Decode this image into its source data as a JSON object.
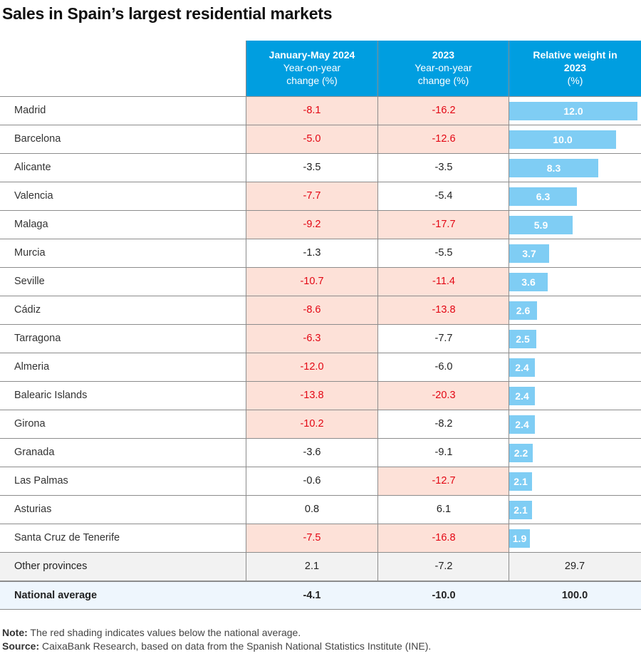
{
  "title": "Sales in Spain’s largest residential markets",
  "columns": [
    {
      "bold": "January-May 2024",
      "l1": "Year-on-year",
      "l2": "change (%)"
    },
    {
      "bold": "2023",
      "l1": "Year-on-year",
      "l2": "change (%)"
    },
    {
      "bold": "Relative weight in",
      "l1": "2023",
      "l2": "(%)"
    }
  ],
  "chart_data": {
    "type": "table",
    "title": "Sales in Spain’s largest residential markets",
    "headers": [
      "January-May 2024 Year-on-year change (%)",
      "2023 Year-on-year change (%)",
      "Relative weight in 2023 (%)"
    ],
    "rows": [
      {
        "name": "Madrid",
        "ytd": "-8.1",
        "y2023": "-16.2",
        "weight": "12.0",
        "w": 12.0,
        "ytd_neg": true,
        "y23_neg": true
      },
      {
        "name": "Barcelona",
        "ytd": "-5.0",
        "y2023": "-12.6",
        "weight": "10.0",
        "w": 10.0,
        "ytd_neg": true,
        "y23_neg": true
      },
      {
        "name": "Alicante",
        "ytd": "-3.5",
        "y2023": "-3.5",
        "weight": "8.3",
        "w": 8.3,
        "ytd_neg": false,
        "y23_neg": false
      },
      {
        "name": "Valencia",
        "ytd": "-7.7",
        "y2023": "-5.4",
        "weight": "6.3",
        "w": 6.3,
        "ytd_neg": true,
        "y23_neg": false
      },
      {
        "name": "Malaga",
        "ytd": "-9.2",
        "y2023": "-17.7",
        "weight": "5.9",
        "w": 5.9,
        "ytd_neg": true,
        "y23_neg": true
      },
      {
        "name": "Murcia",
        "ytd": "-1.3",
        "y2023": "-5.5",
        "weight": "3.7",
        "w": 3.7,
        "ytd_neg": false,
        "y23_neg": false
      },
      {
        "name": "Seville",
        "ytd": "-10.7",
        "y2023": "-11.4",
        "weight": "3.6",
        "w": 3.6,
        "ytd_neg": true,
        "y23_neg": true
      },
      {
        "name": "Cádiz",
        "ytd": "-8.6",
        "y2023": "-13.8",
        "weight": "2.6",
        "w": 2.6,
        "ytd_neg": true,
        "y23_neg": true
      },
      {
        "name": "Tarragona",
        "ytd": "-6.3",
        "y2023": "-7.7",
        "weight": "2.5",
        "w": 2.5,
        "ytd_neg": true,
        "y23_neg": false
      },
      {
        "name": "Almeria",
        "ytd": "-12.0",
        "y2023": "-6.0",
        "weight": "2.4",
        "w": 2.4,
        "ytd_neg": true,
        "y23_neg": false
      },
      {
        "name": "Balearic Islands",
        "ytd": "-13.8",
        "y2023": "-20.3",
        "weight": "2.4",
        "w": 2.4,
        "ytd_neg": true,
        "y23_neg": true
      },
      {
        "name": "Girona",
        "ytd": "-10.2",
        "y2023": "-8.2",
        "weight": "2.4",
        "w": 2.4,
        "ytd_neg": true,
        "y23_neg": false
      },
      {
        "name": "Granada",
        "ytd": "-3.6",
        "y2023": "-9.1",
        "weight": "2.2",
        "w": 2.2,
        "ytd_neg": false,
        "y23_neg": false
      },
      {
        "name": "Las Palmas",
        "ytd": "-0.6",
        "y2023": "-12.7",
        "weight": "2.1",
        "w": 2.1,
        "ytd_neg": false,
        "y23_neg": true
      },
      {
        "name": "Asturias",
        "ytd": "0.8",
        "y2023": "6.1",
        "weight": "2.1",
        "w": 2.1,
        "ytd_neg": false,
        "y23_neg": false
      },
      {
        "name": "Santa Cruz de Tenerife",
        "ytd": "-7.5",
        "y2023": "-16.8",
        "weight": "1.9",
        "w": 1.9,
        "ytd_neg": true,
        "y23_neg": true
      }
    ],
    "other": {
      "name": "Other provinces",
      "ytd": "2.1",
      "y2023": "-7.2",
      "weight": "29.7"
    },
    "national": {
      "name": "National average",
      "ytd": "-4.1",
      "y2023": "-10.0",
      "weight": "100.0"
    },
    "bar_max": 12.0
  },
  "colors": {
    "header": "#009ee0",
    "bar": "#7fcdf4",
    "neg_bg": "#fde1d8",
    "neg_text": "#e30613"
  },
  "note": {
    "label": "Note:",
    "text": " The red shading indicates values below the national average."
  },
  "source": {
    "label": "Source:",
    "text": " CaixaBank Research, based on data from the Spanish National Statistics Institute (INE)."
  }
}
